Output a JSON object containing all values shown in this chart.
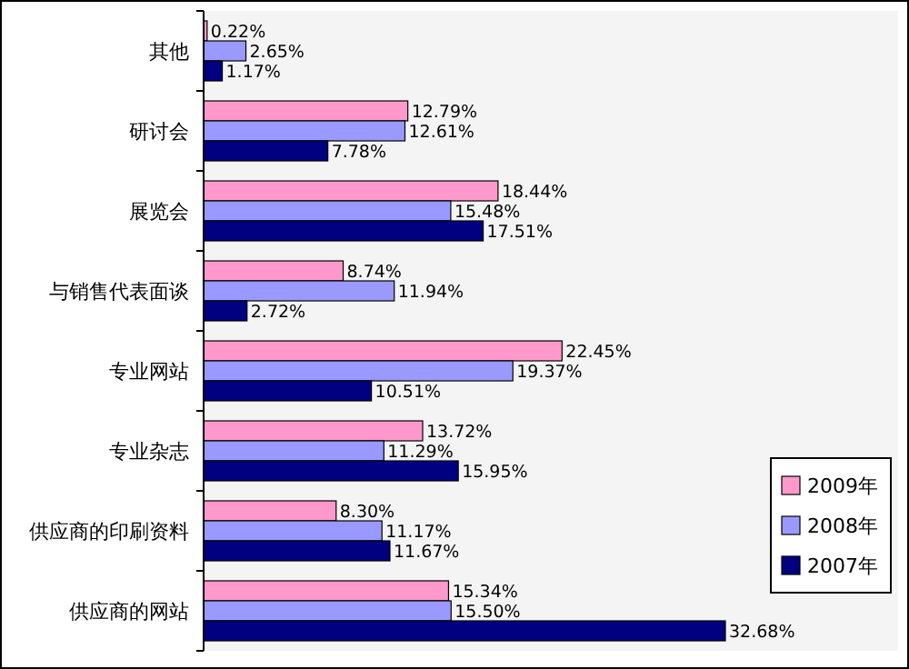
{
  "chart_data": {
    "type": "bar",
    "orientation": "horizontal",
    "categories": [
      "其他",
      "研讨会",
      "展览会",
      "与销售代表面谈",
      "专业网站",
      "专业杂志",
      "供应商的印刷资料",
      "供应商的网站"
    ],
    "series": [
      {
        "name": "2009年",
        "color": "#ff99cc",
        "values": [
          0.22,
          12.79,
          18.44,
          8.74,
          22.45,
          13.72,
          8.3,
          15.34
        ],
        "value_labels": [
          "0.22%",
          "12.79%",
          "18.44%",
          "8.74%",
          "22.45%",
          "13.72%",
          "8.30%",
          "15.34%"
        ]
      },
      {
        "name": "2008年",
        "color": "#9999ff",
        "values": [
          2.65,
          12.61,
          15.48,
          11.94,
          19.37,
          11.29,
          11.17,
          15.5
        ],
        "value_labels": [
          "2.65%",
          "12.61%",
          "15.48%",
          "11.94%",
          "19.37%",
          "11.29%",
          "11.17%",
          "15.50%"
        ]
      },
      {
        "name": "2007年",
        "color": "#000080",
        "values": [
          1.17,
          7.78,
          17.51,
          2.72,
          10.51,
          15.95,
          11.67,
          32.68
        ],
        "value_labels": [
          "1.17%",
          "7.78%",
          "17.51%",
          "2.72%",
          "10.51%",
          "15.95%",
          "11.67%",
          "32.68%"
        ]
      }
    ],
    "legend": "right",
    "grid": false
  }
}
